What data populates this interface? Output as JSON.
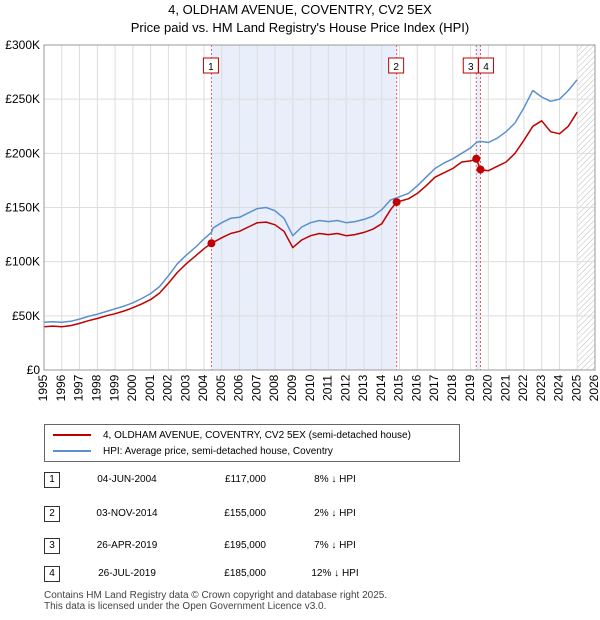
{
  "chart_data": {
    "type": "line",
    "title": "4, OLDHAM AVENUE, COVENTRY, CV2 5EX",
    "subtitle": "Price paid vs. HM Land Registry's House Price Index (HPI)",
    "xlabel": "",
    "ylabel": "",
    "xlim": [
      1995,
      2026
    ],
    "ylim": [
      0,
      300000
    ],
    "x_ticks": [
      "1995",
      "1996",
      "1997",
      "1998",
      "1999",
      "2000",
      "2001",
      "2002",
      "2003",
      "2004",
      "2005",
      "2006",
      "2007",
      "2008",
      "2009",
      "2010",
      "2011",
      "2012",
      "2013",
      "2014",
      "2015",
      "2016",
      "2017",
      "2018",
      "2019",
      "2020",
      "2021",
      "2022",
      "2023",
      "2024",
      "2025",
      "2026"
    ],
    "y_ticks": [
      {
        "value": 0,
        "label": "£0"
      },
      {
        "value": 50000,
        "label": "£50K"
      },
      {
        "value": 100000,
        "label": "£100K"
      },
      {
        "value": 150000,
        "label": "£150K"
      },
      {
        "value": 200000,
        "label": "£200K"
      },
      {
        "value": 250000,
        "label": "£250K"
      },
      {
        "value": 300000,
        "label": "£300K"
      }
    ],
    "grid": true,
    "future_from": 2025.0,
    "series": [
      {
        "name": "4, OLDHAM AVENUE, COVENTRY, CV2 5EX (semi-detached house)",
        "color": "#c00000",
        "x": [
          1995.0,
          1995.5,
          1996.0,
          1996.5,
          1997.0,
          1997.5,
          1998.0,
          1998.5,
          1999.0,
          1999.5,
          2000.0,
          2000.5,
          2001.0,
          2001.5,
          2002.0,
          2002.5,
          2003.0,
          2003.5,
          2004.0,
          2004.42,
          2004.42,
          2005.0,
          2005.5,
          2006.0,
          2006.5,
          2007.0,
          2007.5,
          2008.0,
          2008.5,
          2009.0,
          2009.5,
          2010.0,
          2010.5,
          2011.0,
          2011.5,
          2012.0,
          2012.5,
          2013.0,
          2013.5,
          2014.0,
          2014.5,
          2014.84,
          2014.84,
          2015.5,
          2016.0,
          2016.5,
          2017.0,
          2017.5,
          2018.0,
          2018.5,
          2019.0,
          2019.32,
          2019.32,
          2019.56,
          2019.56,
          2020.0,
          2020.5,
          2021.0,
          2021.5,
          2022.0,
          2022.5,
          2023.0,
          2023.5,
          2024.0,
          2024.5,
          2025.0
        ],
        "values": [
          40000,
          40500,
          40000,
          41000,
          43000,
          45500,
          47500,
          50000,
          52000,
          54500,
          57500,
          61000,
          65000,
          71000,
          80000,
          90000,
          98000,
          105000,
          112000,
          117000,
          117000,
          122000,
          126000,
          128000,
          132000,
          136000,
          136500,
          134000,
          128000,
          113000,
          120000,
          124000,
          126000,
          125000,
          126000,
          124000,
          125000,
          127000,
          130000,
          135000,
          148000,
          155000,
          155000,
          158000,
          163000,
          170000,
          178000,
          182000,
          186000,
          192000,
          193000,
          195000,
          195000,
          185000,
          185000,
          184000,
          188000,
          192000,
          200000,
          212000,
          225000,
          230000,
          220000,
          218000,
          225000,
          238000
        ]
      },
      {
        "name": "HPI: Average price, semi-detached house, Coventry",
        "color": "#5b8fd0",
        "x": [
          1995.0,
          1995.5,
          1996.0,
          1996.5,
          1997.0,
          1997.5,
          1998.0,
          1998.5,
          1999.0,
          1999.5,
          2000.0,
          2000.5,
          2001.0,
          2001.5,
          2002.0,
          2002.5,
          2003.0,
          2003.5,
          2004.0,
          2004.42,
          2004.5,
          2005.0,
          2005.5,
          2006.0,
          2006.5,
          2007.0,
          2007.5,
          2008.0,
          2008.5,
          2009.0,
          2009.5,
          2010.0,
          2010.5,
          2011.0,
          2011.5,
          2012.0,
          2012.5,
          2013.0,
          2013.5,
          2014.0,
          2014.5,
          2014.84,
          2015.5,
          2016.0,
          2016.5,
          2017.0,
          2017.5,
          2018.0,
          2018.5,
          2019.0,
          2019.32,
          2019.56,
          2020.0,
          2020.5,
          2021.0,
          2021.5,
          2022.0,
          2022.5,
          2023.0,
          2023.5,
          2024.0,
          2024.5,
          2025.0
        ],
        "values": [
          44000,
          44500,
          44000,
          45000,
          47000,
          49500,
          51500,
          54000,
          56500,
          59000,
          62000,
          66000,
          70500,
          77000,
          87000,
          98000,
          106000,
          113000,
          121000,
          127000,
          131000,
          136000,
          140000,
          141000,
          145000,
          149000,
          150000,
          147000,
          140000,
          124000,
          132000,
          136000,
          138000,
          137000,
          138000,
          136000,
          137000,
          139000,
          142000,
          148000,
          157000,
          159000,
          163000,
          170000,
          178000,
          186000,
          191000,
          195000,
          200000,
          205000,
          210000,
          211000,
          210000,
          214000,
          220000,
          228000,
          242000,
          258000,
          252000,
          248000,
          250000,
          258000,
          268000
        ]
      }
    ],
    "markers": [
      {
        "id": "1",
        "x": 2004.42,
        "y": 117000
      },
      {
        "id": "2",
        "x": 2014.84,
        "y": 155000
      },
      {
        "id": "3",
        "x": 2019.32,
        "y": 195000
      },
      {
        "id": "4",
        "x": 2019.56,
        "y": 185000
      }
    ],
    "shaded_ranges": [
      [
        2004.42,
        2014.84
      ],
      [
        2019.32,
        2019.56
      ]
    ]
  },
  "legend": {
    "property_label": "4, OLDHAM AVENUE, COVENTRY, CV2 5EX (semi-detached house)",
    "hpi_label": "HPI: Average price, semi-detached house, Coventry",
    "property_color": "#c00000",
    "hpi_color": "#5b8fd0"
  },
  "transactions": [
    {
      "num": "1",
      "date": "04-JUN-2004",
      "price": "£117,000",
      "hpi": "8% ↓ HPI"
    },
    {
      "num": "2",
      "date": "03-NOV-2014",
      "price": "£155,000",
      "hpi": "2% ↓ HPI"
    },
    {
      "num": "3",
      "date": "26-APR-2019",
      "price": "£195,000",
      "hpi": "7% ↓ HPI"
    },
    {
      "num": "4",
      "date": "26-JUL-2019",
      "price": "£185,000",
      "hpi": "12% ↓ HPI"
    }
  ],
  "footer": {
    "line1": "Contains HM Land Registry data © Crown copyright and database right 2025.",
    "line2": "This data is licensed under the Open Government Licence v3.0."
  }
}
